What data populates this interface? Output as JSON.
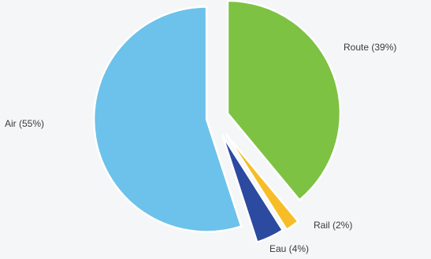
{
  "chart_data": {
    "type": "pie",
    "exploded": true,
    "start": "12 o'clock, clockwise",
    "slices": [
      {
        "label": "Route (39%)",
        "value": 39,
        "color": "#7dc242"
      },
      {
        "label": "Rail (2%)",
        "value": 2,
        "color": "#f7bd26"
      },
      {
        "label": "Eau (4%)",
        "value": 4,
        "color": "#2b4aa0"
      },
      {
        "label": "Air (55%)",
        "value": 55,
        "color": "#6cc2ea"
      }
    ]
  }
}
